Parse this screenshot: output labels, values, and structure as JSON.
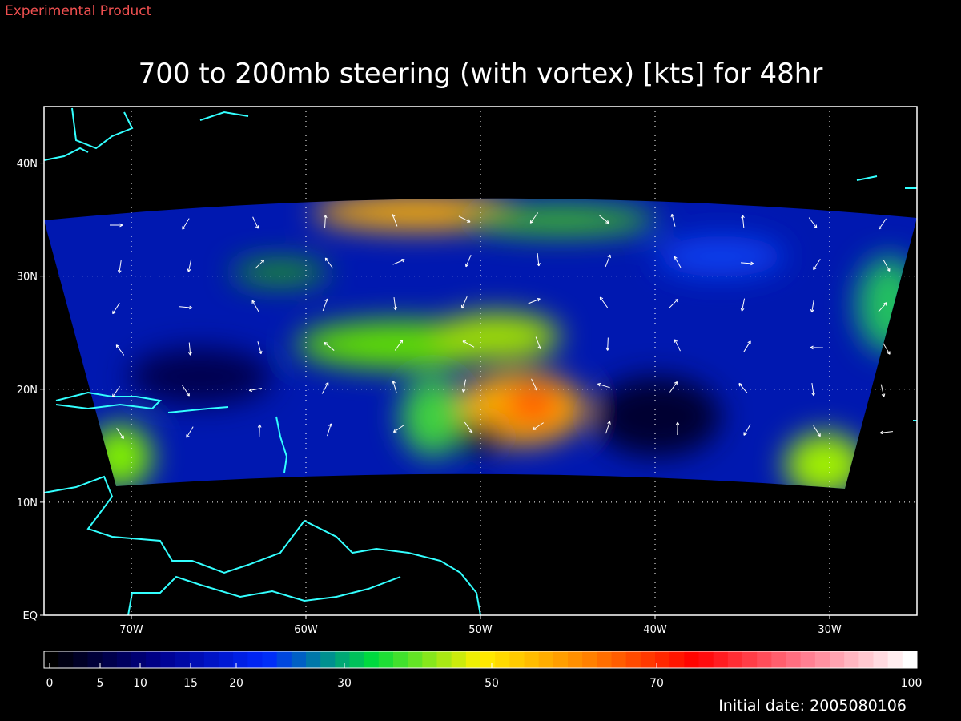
{
  "header": {
    "note": "Experimental Product"
  },
  "map": {
    "title": "700 to 200mb steering (with vortex) [kts] for 48hr",
    "lon_range": [
      -75,
      -25
    ],
    "lat_range": [
      0,
      45
    ],
    "grid": true,
    "lat_ticks": [
      {
        "value": 0,
        "label": "EQ"
      },
      {
        "value": 10,
        "label": "10N"
      },
      {
        "value": 20,
        "label": "20N"
      },
      {
        "value": 30,
        "label": "30N"
      },
      {
        "value": 40,
        "label": "40N"
      }
    ],
    "lon_ticks": [
      {
        "value": -70,
        "label": "70W"
      },
      {
        "value": -60,
        "label": "60W"
      },
      {
        "value": -50,
        "label": "50W"
      },
      {
        "value": -40,
        "label": "40W"
      },
      {
        "value": -30,
        "label": "30W"
      }
    ]
  },
  "colorbar": {
    "range": [
      0,
      100
    ],
    "ticks": [
      0,
      5,
      10,
      15,
      20,
      30,
      50,
      70,
      100
    ]
  },
  "footer": {
    "initial_date": "Initial date: 2005080106"
  }
}
